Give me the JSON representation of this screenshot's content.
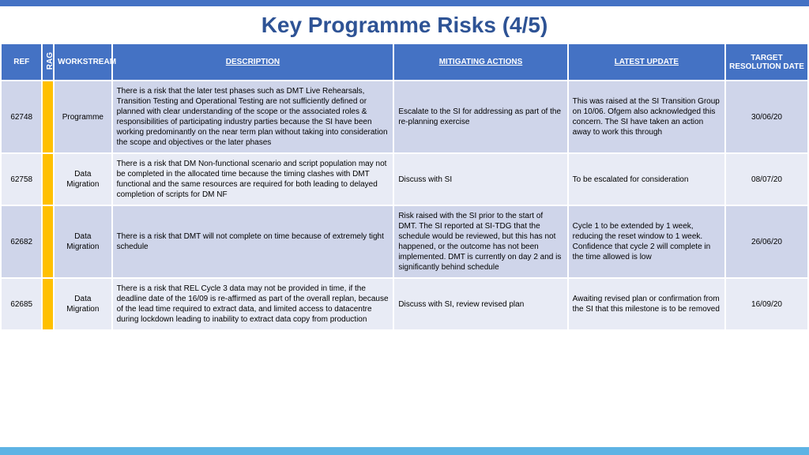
{
  "title": "Key Programme Risks (4/5)",
  "colors": {
    "header_bg": "#4472c4",
    "title_color": "#2e5395",
    "row_bg": "#cfd5ea",
    "row_alt_bg": "#e8ebf5",
    "rag_amber": "#ffc000",
    "bottom_bar": "#5eb3e4"
  },
  "columns": {
    "ref": "REF",
    "rag": "RAG",
    "workstream": "WORKSTREAM",
    "description": "DESCRIPTION",
    "mitigating": "MITIGATING ACTIONS",
    "latest": "LATEST UPDATE",
    "target": "TARGET RESOLUTION DATE"
  },
  "rows": [
    {
      "ref": "62748",
      "rag": "#ffc000",
      "workstream": "Programme",
      "description": "There is a risk that the later test phases such as DMT Live Rehearsals, Transition Testing and Operational Testing are not sufficiently defined or planned with clear understanding of the scope or the associated roles & responsibilities of participating industry parties because the SI have been working predominantly on the near term plan without taking into consideration the scope and objectives or the later phases",
      "mitigating": "Escalate to the SI for addressing as part of the re-planning exercise",
      "latest": "This was raised at the SI Transition Group on 10/06. Ofgem also acknowledged this concern. The SI have taken an action away to work this through",
      "target": "30/06/20"
    },
    {
      "ref": "62758",
      "rag": "#ffc000",
      "workstream": "Data Migration",
      "description": "There is a risk that DM Non-functional scenario and script population may not be completed in the allocated time because the timing clashes with DMT functional and the same resources are required for both leading to delayed completion of scripts for DM NF",
      "mitigating": "Discuss with SI",
      "latest": "To be escalated for consideration",
      "target": "08/07/20"
    },
    {
      "ref": "62682",
      "rag": "#ffc000",
      "workstream": "Data Migration",
      "description": "There is a risk that DMT will not complete on time because of extremely tight schedule",
      "mitigating": "Risk raised with the SI prior to the start of DMT. The SI reported at SI-TDG that the schedule would be reviewed, but this has not happened, or the outcome has not been implemented. DMT is currently on day 2 and is significantly behind schedule",
      "latest": "Cycle 1 to be extended by 1 week, reducing the reset window to 1 week. Confidence that cycle 2 will complete in the time allowed is low",
      "target": "26/06/20"
    },
    {
      "ref": "62685",
      "rag": "#ffc000",
      "workstream": "Data Migration",
      "description": "There is a risk that REL Cycle 3 data may not be provided in time, if the deadline date of the 16/09 is re-affirmed as part of the overall replan, because of the lead time required to extract data, and limited access to datacentre during lockdown leading to inability to extract data copy from production",
      "mitigating": "Discuss with SI, review revised plan",
      "latest": "Awaiting revised plan or confirmation from the SI that this milestone is to be removed",
      "target": "16/09/20"
    }
  ]
}
